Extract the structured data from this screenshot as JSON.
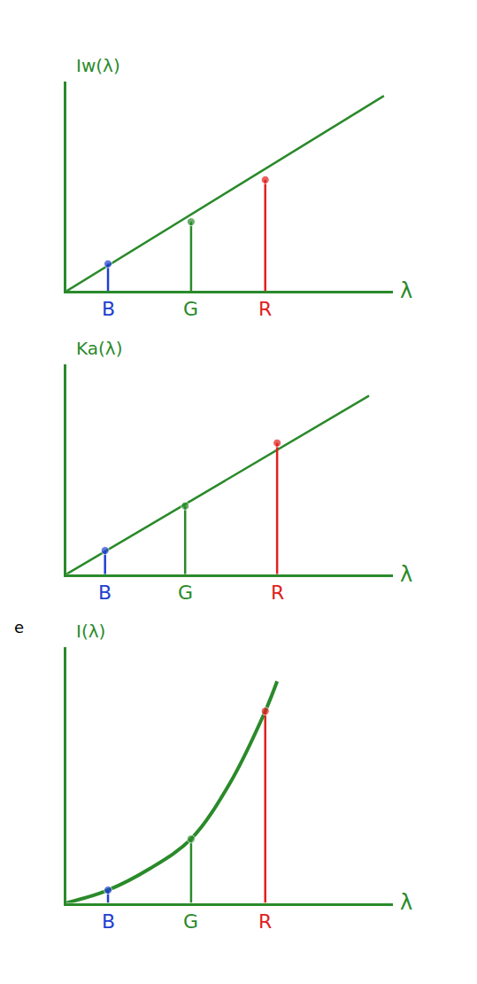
{
  "chart_data": [
    {
      "type": "line",
      "title": "Iw(λ)",
      "x_label": "λ",
      "xlim": [
        0,
        11
      ],
      "ylim": [
        0,
        10
      ],
      "tick_labels": false,
      "grid": false,
      "color": "#2a8a2a",
      "x": [
        0,
        10.7
      ],
      "values": [
        0,
        9.3
      ],
      "stems": {
        "categories": [
          "B",
          "G",
          "R"
        ],
        "x": [
          1.4,
          4.2,
          6.7
        ],
        "values": [
          1.3,
          3.3,
          5.3
        ],
        "colors": [
          "#2040d0",
          "#2a8a2a",
          "#e02020"
        ]
      }
    },
    {
      "type": "line",
      "title": "Ka(λ)",
      "x_label": "λ",
      "xlim": [
        0,
        11
      ],
      "ylim": [
        0,
        8
      ],
      "tick_labels": false,
      "grid": false,
      "color": "#2a8a2a",
      "x": [
        0,
        10.2
      ],
      "values": [
        0,
        6.8
      ],
      "stems": {
        "categories": [
          "B",
          "G",
          "R"
        ],
        "x": [
          1.3,
          4.0,
          7.1
        ],
        "values": [
          0.9,
          2.6,
          5.0
        ],
        "colors": [
          "#2040d0",
          "#2a8a2a",
          "#e02020"
        ]
      }
    },
    {
      "type": "line",
      "title": "I(λ)",
      "x_label": "λ",
      "xlim": [
        0,
        11
      ],
      "ylim": [
        0,
        6
      ],
      "tick_labels": false,
      "grid": false,
      "color": "#2a8a2a",
      "x": [
        0,
        1.4,
        2.8,
        4.2,
        5.5,
        6.7,
        7.1
      ],
      "values": [
        0,
        0.3,
        0.8,
        1.5,
        2.8,
        4.5,
        5.2
      ],
      "stems": {
        "categories": [
          "B",
          "G",
          "R"
        ],
        "x": [
          1.4,
          4.2,
          6.7
        ],
        "values": [
          0.3,
          1.5,
          4.5
        ],
        "colors": [
          "#2040d0",
          "#2a8a2a",
          "#e02020"
        ]
      },
      "annotations": [
        "e"
      ]
    }
  ]
}
